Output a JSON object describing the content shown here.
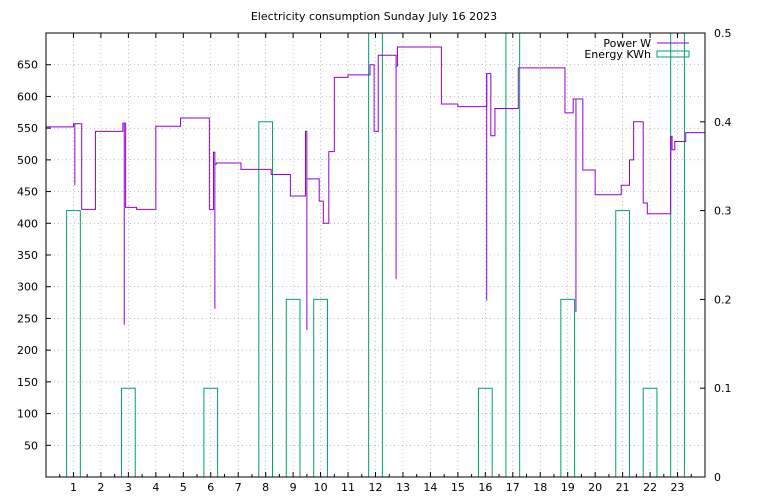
{
  "chart_data": {
    "type": "line",
    "title": "Electricity consumption Sunday July 16 2023",
    "xlabel": "",
    "ylabel": "",
    "y2label": "",
    "xlim": [
      0,
      24
    ],
    "ylim": [
      0,
      700
    ],
    "y2lim": [
      0,
      0.5
    ],
    "xticks": [
      "1",
      "2",
      "3",
      "4",
      "5",
      "6",
      "7",
      "8",
      "9",
      "10",
      "11",
      "12",
      "13",
      "14",
      "15",
      "16",
      "17",
      "18",
      "19",
      "20",
      "21",
      "22",
      "23"
    ],
    "yticks": [
      "50",
      "100",
      "150",
      "200",
      "250",
      "300",
      "350",
      "400",
      "450",
      "500",
      "550",
      "600",
      "650"
    ],
    "y2ticks": [
      "0",
      "0.1",
      "0.2",
      "0.3",
      "0.4",
      "0.5"
    ],
    "grid": true,
    "legend_position": "top-right",
    "series": [
      {
        "name": "Power W",
        "color": "#9400d3",
        "axis": "y1",
        "style": "steps",
        "x": [
          0,
          0.75,
          1.0,
          1.3,
          1.7,
          1.8,
          2.8,
          2.9,
          3.3,
          3.9,
          4.0,
          4.9,
          5.0,
          5.95,
          6.05,
          6.1,
          6.15,
          6.2,
          7.1,
          7.9,
          8.2,
          8.9,
          9.25,
          9.45,
          9.5,
          9.95,
          10.1,
          10.3,
          10.5,
          11.0,
          11.8,
          11.9,
          11.95,
          12.1,
          12.75,
          12.8,
          13.55,
          14.4,
          15.0,
          15.9,
          16.05,
          16.2,
          16.35,
          16.5,
          16.95,
          17.2,
          18.0,
          18.9,
          19.2,
          19.55,
          20.0,
          20.85,
          20.95,
          21.25,
          21.4,
          21.75,
          21.9,
          22.5,
          22.75,
          22.8,
          22.9,
          23.3,
          24.0
        ],
        "values": [
          552,
          552,
          557,
          422,
          422,
          545,
          558,
          425,
          422,
          422,
          553,
          566,
          566,
          422,
          422,
          512,
          493,
          495,
          485,
          485,
          477,
          443,
          443,
          545,
          470,
          435,
          400,
          513,
          630,
          634,
          650,
          650,
          545,
          665,
          648,
          678,
          678,
          588,
          584,
          584,
          636,
          538,
          581,
          581,
          581,
          645,
          645,
          574,
          596,
          484,
          445,
          445,
          460,
          500,
          560,
          432,
          415,
          415,
          537,
          516,
          529,
          543,
          543
        ],
        "spikes": [
          {
            "x": 1.05,
            "value": 460
          },
          {
            "x": 2.85,
            "value": 240
          },
          {
            "x": 6.15,
            "value": 265
          },
          {
            "x": 9.5,
            "value": 232
          },
          {
            "x": 12.75,
            "value": 312
          },
          {
            "x": 16.05,
            "value": 278
          },
          {
            "x": 19.3,
            "value": 260
          },
          {
            "x": 20.85,
            "value": 445
          },
          {
            "x": 22.75,
            "value": 500
          }
        ]
      },
      {
        "name": "Energy KWh",
        "color": "#009e73",
        "axis": "y2",
        "style": "boxes",
        "x": [
          1,
          3,
          6,
          8,
          9,
          10,
          12,
          16,
          17,
          19,
          21,
          22,
          23
        ],
        "values": [
          0.3,
          0.1,
          0.1,
          0.4,
          0.2,
          0.2,
          0.5,
          0.1,
          0.5,
          0.2,
          0.3,
          0.1,
          0.5
        ]
      }
    ]
  }
}
